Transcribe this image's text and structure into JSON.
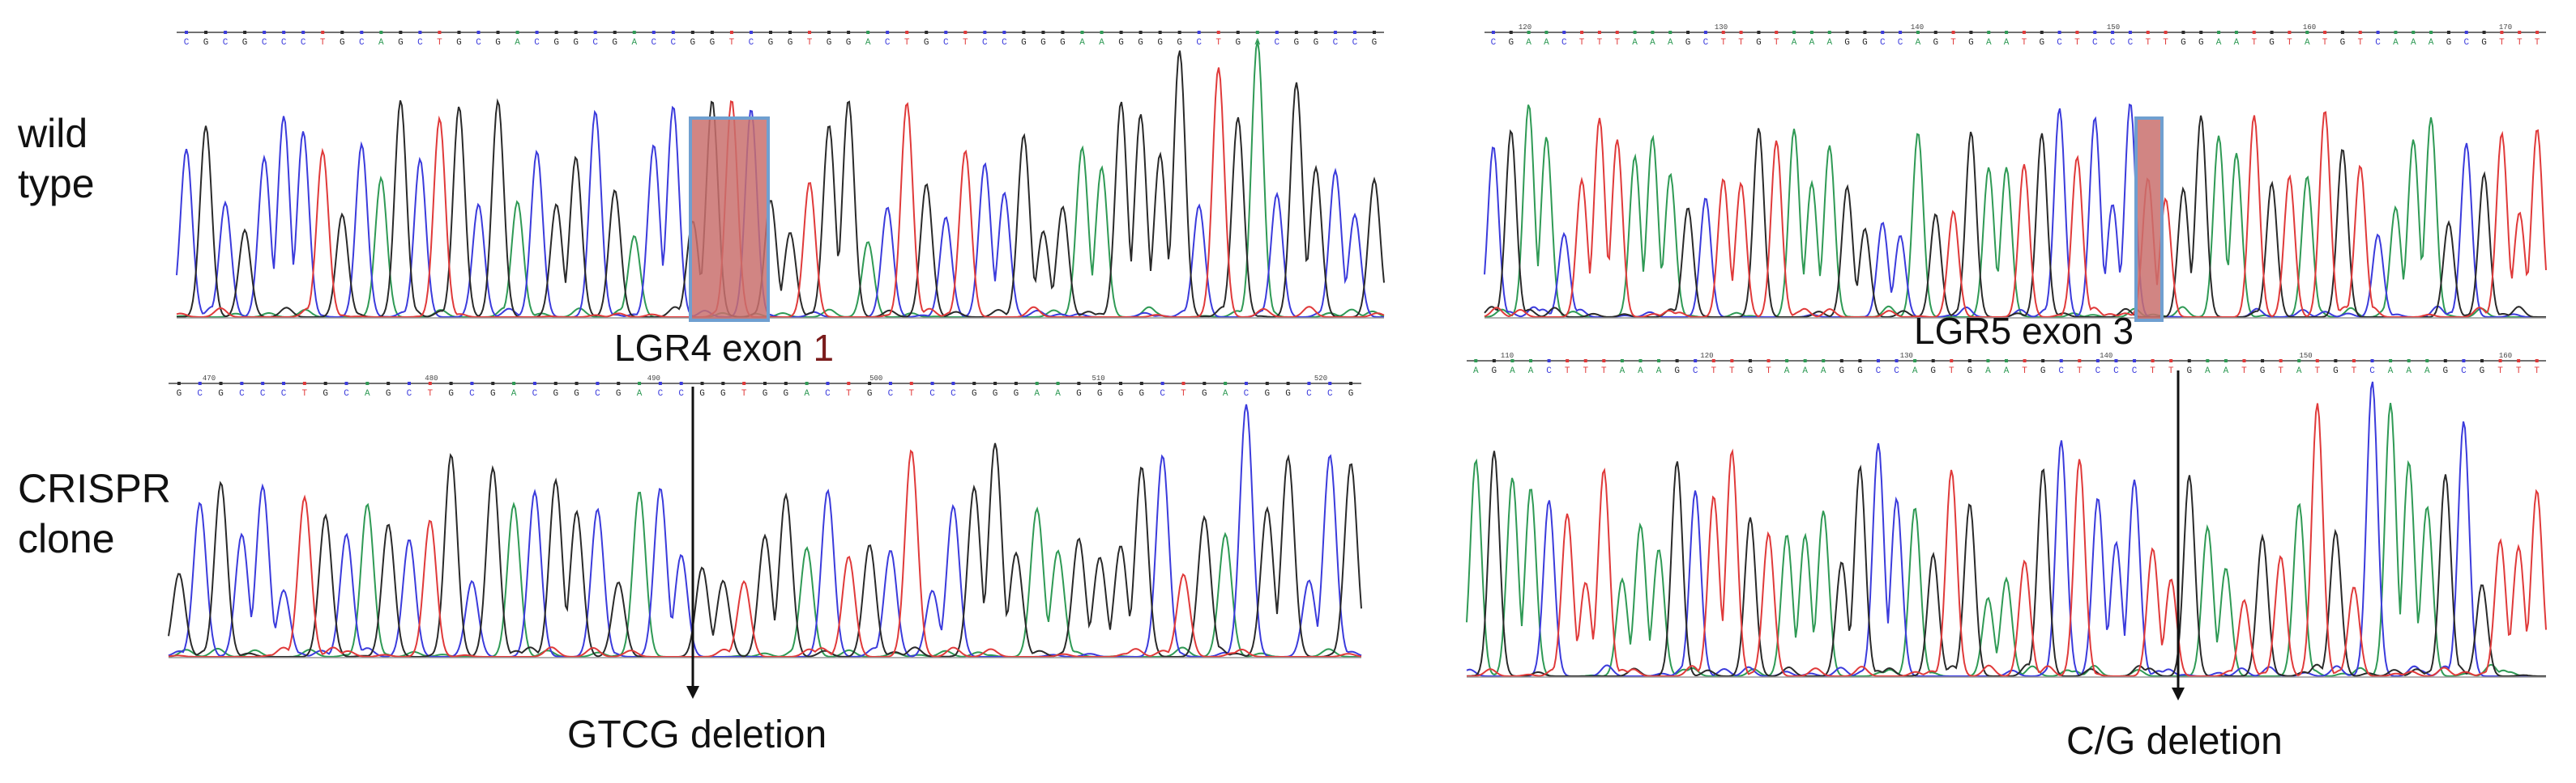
{
  "row_labels": {
    "wild_type": [
      "wild",
      "type"
    ],
    "crispr_clone": [
      "CRISPR",
      "clone"
    ]
  },
  "colors": {
    "A": "#2f9a55",
    "C": "#3b3bdc",
    "G": "#2a2a2a",
    "T": "#e03a3a",
    "highlight": "#c9706d",
    "highlight_border": "#6f9fd0"
  },
  "panels": [
    {
      "id": "lgr4",
      "caption_text": "LGR4 exon ",
      "caption_digit": "1",
      "wt_sequence": "CGCGCCCTGCAGCTGCGACGGCGACCGGTCGGTGGACTGCTCCGGGAAGGGGCTGACGGCCG",
      "clone_sequence": "GCGCCCTGCAGCTGCGACGGCGACCGGTGGACTGCTCCGGGAAGGGGCTGACGGCCG",
      "clone_ruler": [
        "470",
        "480",
        "490",
        "500",
        "510",
        "520"
      ],
      "annotation": "GTCG deletion"
    },
    {
      "id": "lgr5",
      "caption_text": "LGR5 exon 3",
      "wt_sequence": "CGAACTTTAAAGCTTGTAAAGGCCAGTGAATGCTCCCTTGGAATGTATGTCAAAGCGTTT",
      "clone_sequence": "AGAACTTTAAAGCTTGTAAAGGCCAGTGAATGCTCCCTTGAATGTATGTCAAAGCGTTT",
      "wt_ruler": [
        "120",
        "130",
        "140",
        "150",
        "160",
        "170"
      ],
      "clone_ruler": [
        "110",
        "120",
        "130",
        "140",
        "150",
        "160"
      ],
      "annotation": "C/G deletion"
    }
  ]
}
